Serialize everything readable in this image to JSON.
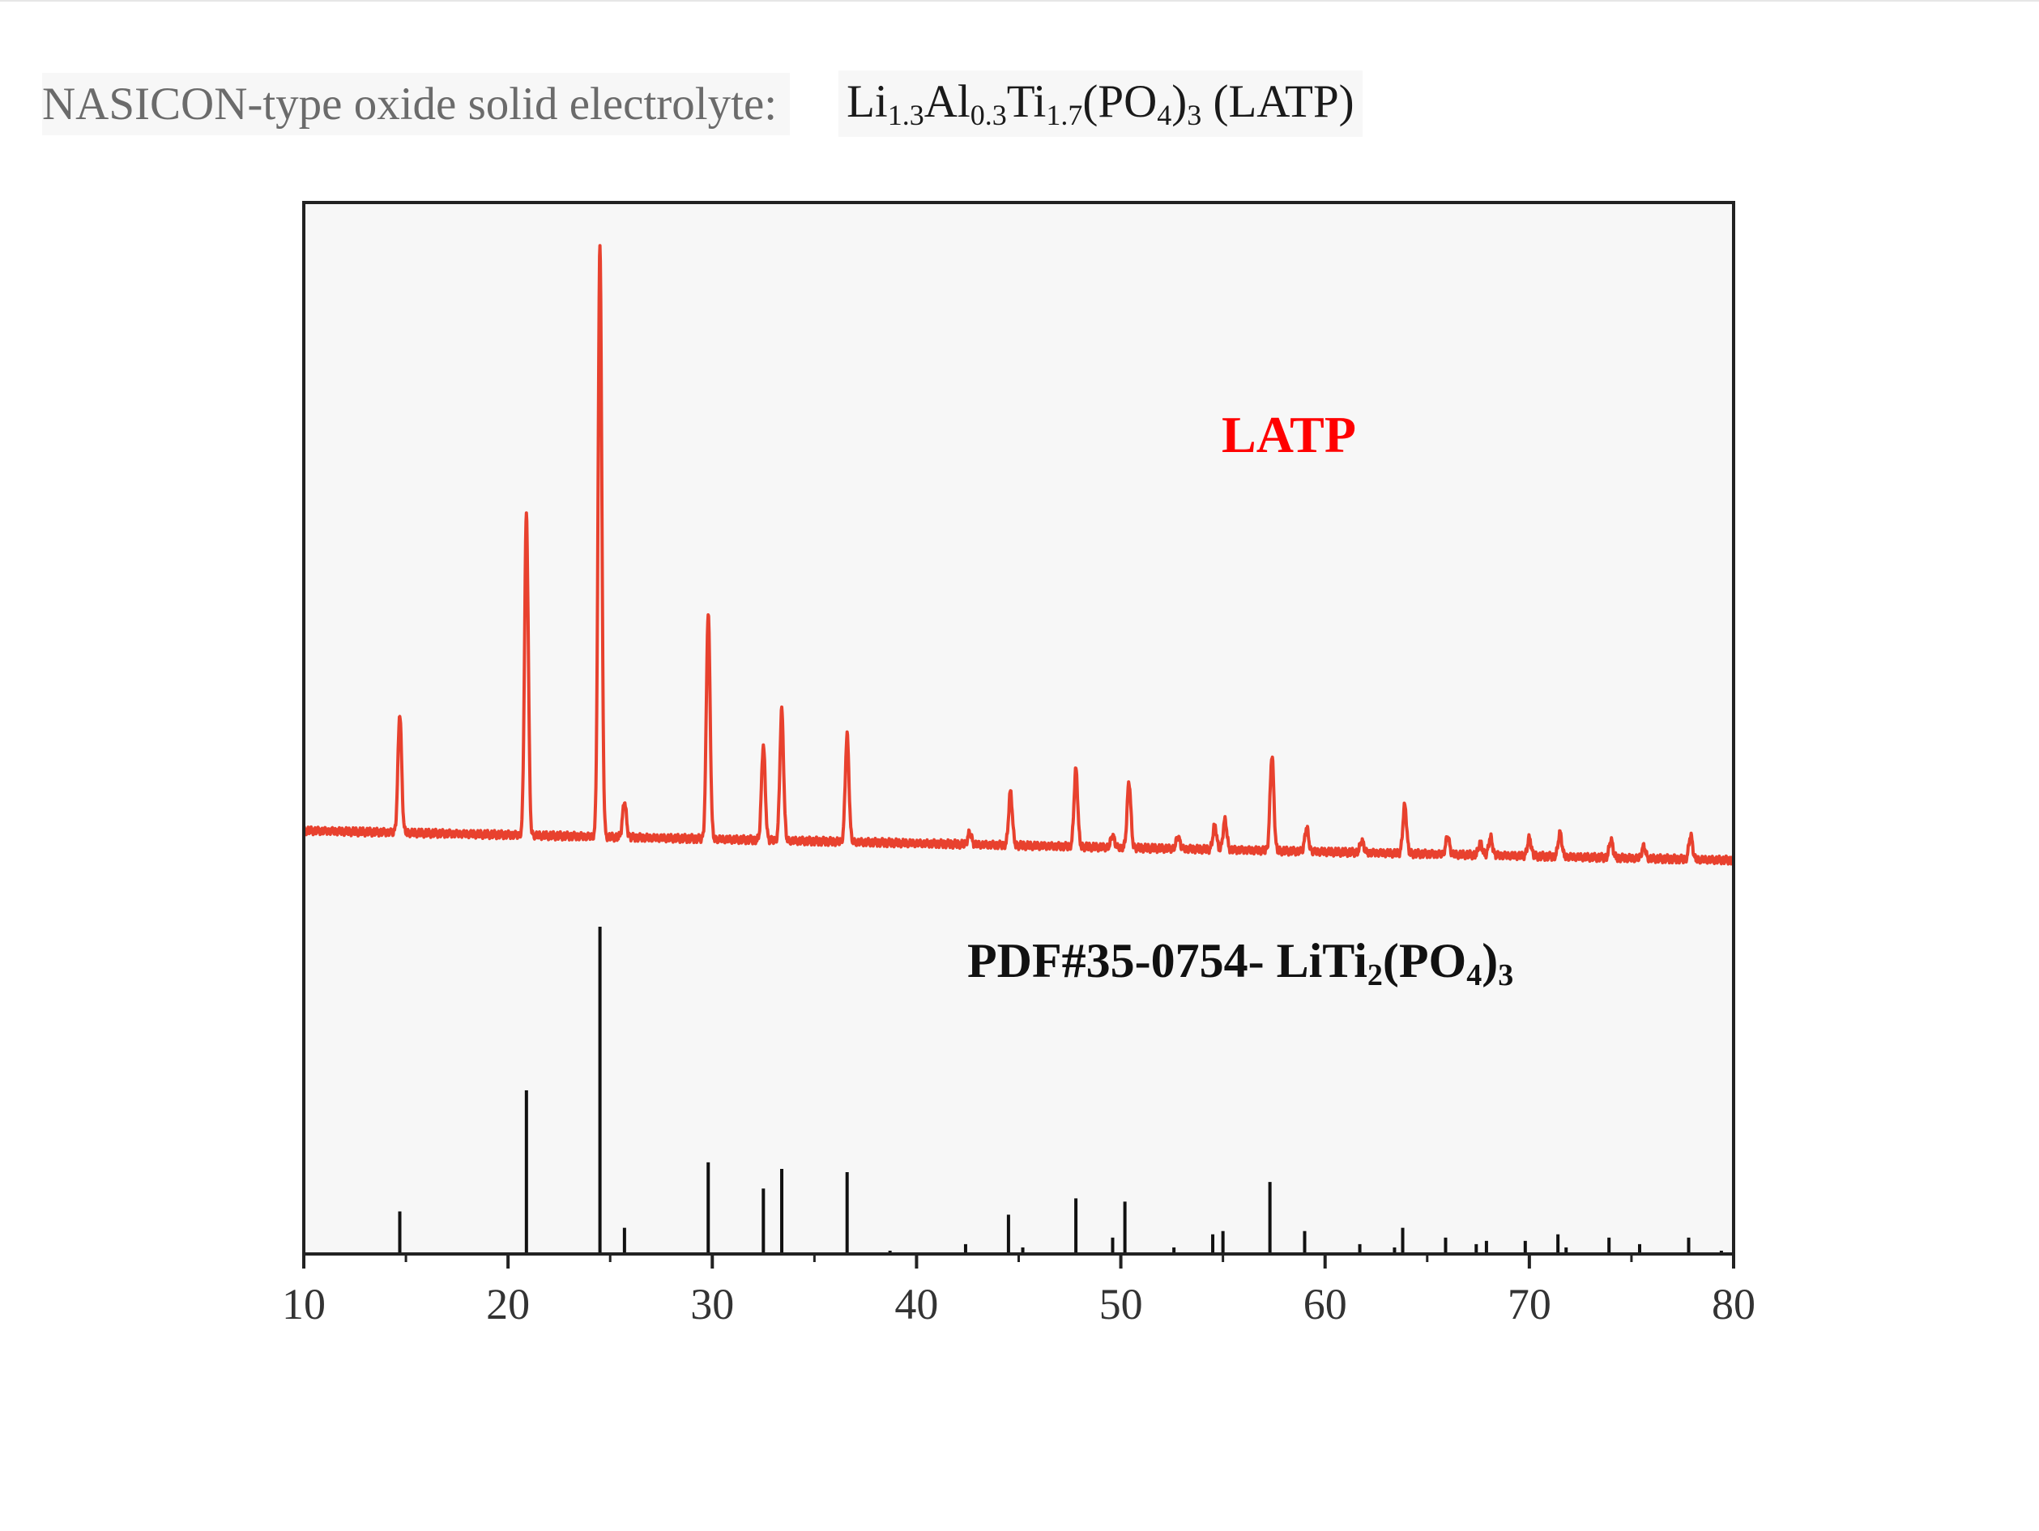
{
  "heading": {
    "prefix": "NASICON-type oxide solid electrolyte:",
    "formula": {
      "li": "Li",
      "li_sub": "1.3",
      "al": "Al",
      "al_sub": "0.3",
      "ti": "Ti",
      "ti_sub": "1.7",
      "po": "(PO",
      "po_sub": "4",
      "close": ")",
      "close_sub": "3",
      "tail": " (LATP)"
    }
  },
  "chart_data": {
    "type": "line",
    "xlabel": "",
    "ylabel": "",
    "xlim": [
      10,
      80
    ],
    "x_ticks": [
      "10",
      "20",
      "30",
      "40",
      "50",
      "60",
      "70",
      "80"
    ],
    "grid": false,
    "legend": "none",
    "colors": {
      "latp": "#e8412e",
      "reference": "#111111",
      "frame": "#222222"
    },
    "series": [
      {
        "name": "LATP",
        "baseline": 0.05,
        "baseline_end": 0.0,
        "peaks": [
          {
            "x": 14.7,
            "h": 0.2
          },
          {
            "x": 20.9,
            "h": 0.54
          },
          {
            "x": 24.5,
            "h": 1.0
          },
          {
            "x": 25.7,
            "h": 0.06
          },
          {
            "x": 29.8,
            "h": 0.38
          },
          {
            "x": 32.5,
            "h": 0.16
          },
          {
            "x": 33.4,
            "h": 0.22
          },
          {
            "x": 36.6,
            "h": 0.18
          },
          {
            "x": 42.6,
            "h": 0.02
          },
          {
            "x": 44.6,
            "h": 0.09
          },
          {
            "x": 47.8,
            "h": 0.13
          },
          {
            "x": 49.6,
            "h": 0.02
          },
          {
            "x": 50.4,
            "h": 0.11
          },
          {
            "x": 52.8,
            "h": 0.02
          },
          {
            "x": 54.6,
            "h": 0.04
          },
          {
            "x": 55.1,
            "h": 0.05
          },
          {
            "x": 57.4,
            "h": 0.16
          },
          {
            "x": 59.1,
            "h": 0.04
          },
          {
            "x": 61.8,
            "h": 0.02
          },
          {
            "x": 63.9,
            "h": 0.08
          },
          {
            "x": 66.0,
            "h": 0.03
          },
          {
            "x": 67.6,
            "h": 0.02
          },
          {
            "x": 68.1,
            "h": 0.03
          },
          {
            "x": 70.0,
            "h": 0.03
          },
          {
            "x": 71.5,
            "h": 0.04
          },
          {
            "x": 74.0,
            "h": 0.03
          },
          {
            "x": 75.6,
            "h": 0.02
          },
          {
            "x": 77.9,
            "h": 0.04
          }
        ]
      },
      {
        "name": "PDF#35-0754- LiTi2(PO4)3",
        "sticks": [
          {
            "x": 14.7,
            "h": 0.13
          },
          {
            "x": 20.9,
            "h": 0.5
          },
          {
            "x": 24.5,
            "h": 1.0
          },
          {
            "x": 25.7,
            "h": 0.08
          },
          {
            "x": 29.8,
            "h": 0.28
          },
          {
            "x": 32.5,
            "h": 0.2
          },
          {
            "x": 33.4,
            "h": 0.26
          },
          {
            "x": 36.6,
            "h": 0.25
          },
          {
            "x": 38.7,
            "h": 0.01
          },
          {
            "x": 42.4,
            "h": 0.03
          },
          {
            "x": 44.5,
            "h": 0.12
          },
          {
            "x": 45.2,
            "h": 0.02
          },
          {
            "x": 47.8,
            "h": 0.17
          },
          {
            "x": 49.6,
            "h": 0.05
          },
          {
            "x": 50.2,
            "h": 0.16
          },
          {
            "x": 52.6,
            "h": 0.02
          },
          {
            "x": 54.5,
            "h": 0.06
          },
          {
            "x": 55.0,
            "h": 0.07
          },
          {
            "x": 57.3,
            "h": 0.22
          },
          {
            "x": 59.0,
            "h": 0.07
          },
          {
            "x": 61.7,
            "h": 0.03
          },
          {
            "x": 63.4,
            "h": 0.02
          },
          {
            "x": 63.8,
            "h": 0.08
          },
          {
            "x": 65.9,
            "h": 0.05
          },
          {
            "x": 67.4,
            "h": 0.03
          },
          {
            "x": 67.9,
            "h": 0.04
          },
          {
            "x": 69.8,
            "h": 0.04
          },
          {
            "x": 71.4,
            "h": 0.06
          },
          {
            "x": 71.8,
            "h": 0.02
          },
          {
            "x": 73.9,
            "h": 0.05
          },
          {
            "x": 75.4,
            "h": 0.03
          },
          {
            "x": 77.8,
            "h": 0.05
          },
          {
            "x": 79.4,
            "h": 0.01
          }
        ]
      }
    ],
    "annotations": {
      "latp": "LATP",
      "reference": {
        "pre": "PDF#35-0754- LiTi",
        "sub1": "2",
        "mid": "(PO",
        "sub2": "4",
        "post": ")",
        "sub3": "3"
      }
    }
  }
}
